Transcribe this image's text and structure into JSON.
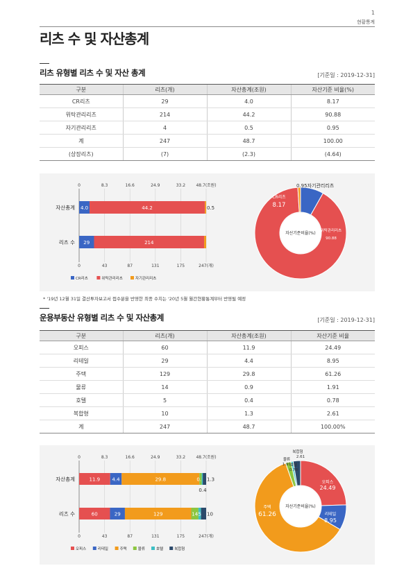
{
  "page": {
    "number": "1",
    "category": "현황통계",
    "title": "리츠 수 및 자산총계"
  },
  "section1": {
    "title": "리츠 유형별 리츠 수 및 자산 총계",
    "basis": "[기준일 : 2019-12-31]",
    "headers": [
      "구분",
      "리츠(개)",
      "자산총계(조원)",
      "자산기준 비율(%)"
    ],
    "rows": [
      [
        "CR리츠",
        "29",
        "4.0",
        "8.17"
      ],
      [
        "위탁관리리츠",
        "214",
        "44.2",
        "90.88"
      ],
      [
        "자기관리리츠",
        "4",
        "0.5",
        "0.95"
      ],
      [
        "계",
        "247",
        "48.7",
        "100.00"
      ],
      [
        "(상장리츠)",
        "(7)",
        "(2.3)",
        "(4.64)"
      ]
    ],
    "footnote": "* '19년 12월 31일 결산투자보고서 접수분을 반영한 최종 수치는 '20년 5월 월간현황통계부터 반영될 예정"
  },
  "section2": {
    "title": "운용부동산 유형별 리츠 수 및 자산총계",
    "basis": "[기준일 : 2019-12-31]",
    "headers": [
      "구분",
      "리츠(개)",
      "자산총계(조원)",
      "자산기준 비율"
    ],
    "rows": [
      [
        "오피스",
        "60",
        "11.9",
        "24.49"
      ],
      [
        "리테일",
        "29",
        "4.4",
        "8.95"
      ],
      [
        "주택",
        "129",
        "29.8",
        "61.26"
      ],
      [
        "물류",
        "14",
        "0.9",
        "1.91"
      ],
      [
        "호텔",
        "5",
        "0.4",
        "0.78"
      ],
      [
        "복합형",
        "10",
        "1.3",
        "2.61"
      ],
      [
        "계",
        "247",
        "48.7",
        "100.00%"
      ]
    ]
  },
  "colors": {
    "cr": "#3a66c4",
    "trust": "#e55050",
    "self": "#f29b1c",
    "office": "#e55050",
    "retail": "#3a66c4",
    "housing": "#f29b1c",
    "logistics": "#8cc63f",
    "hotel": "#3dbfc4",
    "mixed": "#2c4a6b"
  },
  "chart_data": [
    {
      "type": "bar",
      "orientation": "horizontal-stacked",
      "categories": [
        "자산총계",
        "리츠 수"
      ],
      "series": [
        {
          "name": "CR리츠",
          "values": [
            4.0,
            29
          ]
        },
        {
          "name": "위탁관리리츠",
          "values": [
            44.2,
            214
          ]
        },
        {
          "name": "자기관리리츠",
          "values": [
            0.5,
            4
          ]
        }
      ],
      "bar_labels": [
        [
          "4.0",
          "44.2",
          "0.5"
        ],
        [
          "29",
          "214",
          ""
        ]
      ],
      "top_axis": {
        "ticks": [
          "0",
          "8.3",
          "16.6",
          "24.9",
          "33.2",
          "48.7(조원)"
        ],
        "max": 48.7
      },
      "bottom_axis": {
        "ticks": [
          "0",
          "43",
          "87",
          "131",
          "175",
          "247(개)"
        ],
        "max": 247
      },
      "legend": "bottom-left"
    },
    {
      "type": "pie",
      "style": "donut",
      "center_label": "자산기준비율(%)",
      "slices": [
        {
          "name": "CR리츠",
          "value": 8.17
        },
        {
          "name": "위탁관리리츠",
          "value": 90.88
        },
        {
          "name": "자기관리리츠",
          "value": 0.95
        }
      ],
      "labels": {
        "cr_name": "CR리츠",
        "cr_value": "8.17",
        "trust_name": "위탁관리리츠",
        "trust_value": "90.88",
        "self_label": "0.95자기관리리츠"
      }
    },
    {
      "type": "bar",
      "orientation": "horizontal-stacked",
      "categories": [
        "자산총계",
        "리츠 수"
      ],
      "series": [
        {
          "name": "오피스",
          "values": [
            11.9,
            60
          ]
        },
        {
          "name": "리테일",
          "values": [
            4.4,
            29
          ]
        },
        {
          "name": "주택",
          "values": [
            29.8,
            129
          ]
        },
        {
          "name": "물류",
          "values": [
            0.9,
            14
          ]
        },
        {
          "name": "호텔",
          "values": [
            0.4,
            5
          ]
        },
        {
          "name": "복합형",
          "values": [
            1.3,
            10
          ]
        }
      ],
      "bar_labels": [
        [
          "11.9",
          "4.4",
          "29.8",
          "0.9",
          "",
          "1.3"
        ],
        [
          "60",
          "29",
          "129",
          "14",
          "5",
          "10"
        ]
      ],
      "extra_label": "0.4",
      "top_axis": {
        "ticks": [
          "0",
          "8.3",
          "16.6",
          "24.9",
          "33.2",
          "48.7(조원)"
        ],
        "max": 48.7
      },
      "bottom_axis": {
        "ticks": [
          "0",
          "43",
          "87",
          "131",
          "175",
          "247(개)"
        ],
        "max": 247
      },
      "legend": "bottom-left"
    },
    {
      "type": "pie",
      "style": "donut",
      "center_label": "자산기준비율(%)",
      "slices": [
        {
          "name": "오피스",
          "value": 24.49
        },
        {
          "name": "리테일",
          "value": 8.95
        },
        {
          "name": "주택",
          "value": 61.26
        },
        {
          "name": "물류",
          "value": 1.91
        },
        {
          "name": "호텔",
          "value": 0.78
        },
        {
          "name": "복합형",
          "value": 2.61
        }
      ],
      "labels": {
        "office_name": "오피스",
        "office_value": "24.49",
        "retail_name": "리테일",
        "retail_value": "8.95",
        "housing_name": "주택",
        "housing_value": "61.26",
        "small_values": [
          "1.91",
          "0.78",
          "2.61"
        ],
        "small_names": [
          "물류",
          "호텔",
          "복합형"
        ]
      }
    }
  ]
}
